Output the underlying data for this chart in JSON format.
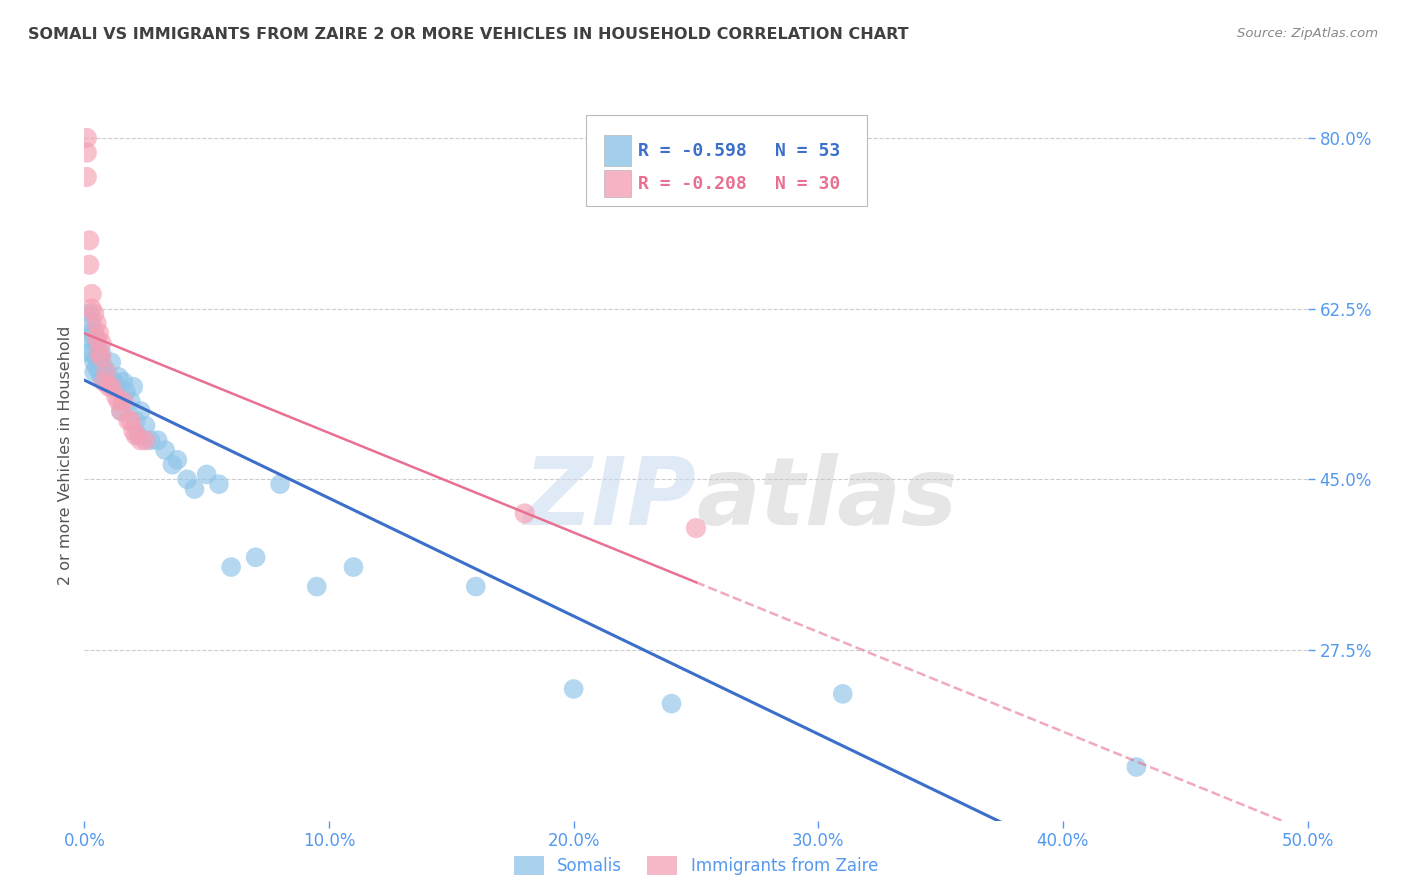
{
  "title": "SOMALI VS IMMIGRANTS FROM ZAIRE 2 OR MORE VEHICLES IN HOUSEHOLD CORRELATION CHART",
  "source": "Source: ZipAtlas.com",
  "ylabel": "2 or more Vehicles in Household",
  "xlim": [
    0.0,
    0.5
  ],
  "ylim": [
    0.1,
    0.85
  ],
  "xticks": [
    0.0,
    0.1,
    0.2,
    0.3,
    0.4,
    0.5
  ],
  "yticks_right": [
    0.275,
    0.45,
    0.625,
    0.8
  ],
  "ytick_labels_right": [
    "27.5%",
    "45.0%",
    "62.5%",
    "80.0%"
  ],
  "xtick_labels": [
    "0.0%",
    "10.0%",
    "20.0%",
    "30.0%",
    "40.0%",
    "50.0%"
  ],
  "somali_x": [
    0.001,
    0.001,
    0.002,
    0.002,
    0.003,
    0.003,
    0.004,
    0.004,
    0.004,
    0.005,
    0.005,
    0.005,
    0.006,
    0.006,
    0.007,
    0.007,
    0.007,
    0.008,
    0.008,
    0.009,
    0.01,
    0.011,
    0.012,
    0.013,
    0.014,
    0.015,
    0.016,
    0.017,
    0.019,
    0.02,
    0.021,
    0.022,
    0.023,
    0.025,
    0.027,
    0.03,
    0.033,
    0.036,
    0.038,
    0.042,
    0.045,
    0.05,
    0.055,
    0.06,
    0.07,
    0.08,
    0.095,
    0.11,
    0.16,
    0.2,
    0.24,
    0.31,
    0.43
  ],
  "somali_y": [
    0.595,
    0.58,
    0.62,
    0.6,
    0.61,
    0.58,
    0.6,
    0.57,
    0.56,
    0.59,
    0.575,
    0.565,
    0.575,
    0.56,
    0.58,
    0.565,
    0.555,
    0.565,
    0.555,
    0.55,
    0.555,
    0.57,
    0.55,
    0.545,
    0.555,
    0.52,
    0.55,
    0.54,
    0.53,
    0.545,
    0.51,
    0.495,
    0.52,
    0.505,
    0.49,
    0.49,
    0.48,
    0.465,
    0.47,
    0.45,
    0.44,
    0.455,
    0.445,
    0.36,
    0.37,
    0.445,
    0.34,
    0.36,
    0.34,
    0.235,
    0.22,
    0.23,
    0.155
  ],
  "zaire_x": [
    0.001,
    0.001,
    0.001,
    0.002,
    0.002,
    0.003,
    0.003,
    0.004,
    0.005,
    0.005,
    0.006,
    0.006,
    0.007,
    0.007,
    0.008,
    0.009,
    0.01,
    0.011,
    0.013,
    0.014,
    0.015,
    0.016,
    0.018,
    0.019,
    0.02,
    0.021,
    0.023,
    0.025,
    0.18,
    0.25
  ],
  "zaire_y": [
    0.8,
    0.785,
    0.76,
    0.695,
    0.67,
    0.64,
    0.625,
    0.62,
    0.595,
    0.61,
    0.6,
    0.58,
    0.59,
    0.575,
    0.55,
    0.56,
    0.545,
    0.545,
    0.535,
    0.53,
    0.52,
    0.53,
    0.51,
    0.51,
    0.5,
    0.495,
    0.49,
    0.49,
    0.415,
    0.4
  ],
  "somali_color": "#8EC4E8",
  "zaire_color": "#F4A0B5",
  "somali_line_color": "#3B6FC9",
  "zaire_line_color": "#E87090",
  "legend_somali_R": "R = -0.598",
  "legend_somali_N": "N = 53",
  "legend_zaire_R": "R = -0.208",
  "legend_zaire_N": "N = 30",
  "legend_label_somali": "Somalis",
  "legend_label_zaire": "Immigrants from Zaire",
  "watermark_zip": "ZIP",
  "watermark_atlas": "atlas",
  "background_color": "#ffffff",
  "grid_color": "#cccccc",
  "title_color": "#404040",
  "axis_label_color": "#555555",
  "right_tick_color": "#5599EE",
  "bottom_tick_color": "#5599EE"
}
